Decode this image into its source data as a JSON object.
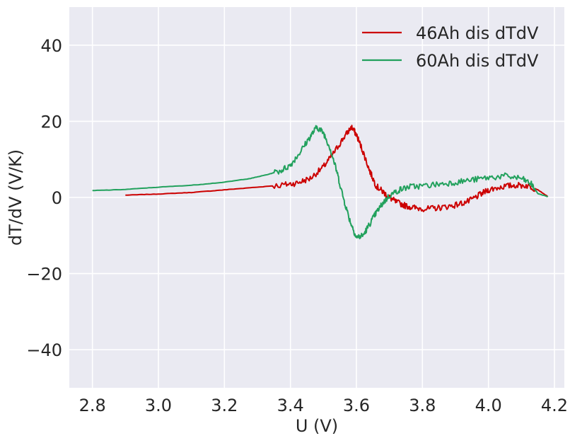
{
  "chart_data": {
    "type": "line",
    "title": "",
    "xlabel": "U (V)",
    "ylabel": "dT/dV (V/K)",
    "xlim": [
      2.73,
      4.23
    ],
    "ylim": [
      -50,
      50
    ],
    "xticks": [
      "2.8",
      "3.0",
      "3.2",
      "3.4",
      "3.6",
      "3.8",
      "4.0",
      "4.2"
    ],
    "yticks": [
      "40",
      "20",
      "0",
      "−20",
      "−40"
    ],
    "xtick_values": [
      2.8,
      3.0,
      3.2,
      3.4,
      3.6,
      3.8,
      4.0,
      4.2
    ],
    "ytick_values": [
      40,
      20,
      0,
      -20,
      -40
    ],
    "grid": true,
    "background": "#eaeaf2",
    "legend": {
      "placement": "top-right"
    },
    "series": [
      {
        "name": "46Ah dis dTdV",
        "color": "#cc0000",
        "points": [
          [
            2.9,
            0.6
          ],
          [
            3.0,
            0.9
          ],
          [
            3.1,
            1.3
          ],
          [
            3.2,
            2.0
          ],
          [
            3.3,
            2.7
          ],
          [
            3.38,
            3.3
          ],
          [
            3.42,
            3.8
          ],
          [
            3.46,
            5.0
          ],
          [
            3.5,
            8.0
          ],
          [
            3.53,
            11.5
          ],
          [
            3.56,
            15.5
          ],
          [
            3.585,
            18.5
          ],
          [
            3.6,
            16.5
          ],
          [
            3.62,
            12.0
          ],
          [
            3.64,
            7.0
          ],
          [
            3.66,
            3.0
          ],
          [
            3.68,
            1.5
          ],
          [
            3.7,
            0.0
          ],
          [
            3.72,
            -1.2
          ],
          [
            3.75,
            -2.2
          ],
          [
            3.78,
            -2.8
          ],
          [
            3.82,
            -3.0
          ],
          [
            3.86,
            -2.6
          ],
          [
            3.9,
            -2.0
          ],
          [
            3.94,
            -1.0
          ],
          [
            3.97,
            0.5
          ],
          [
            4.0,
            2.0
          ],
          [
            4.04,
            2.8
          ],
          [
            4.08,
            3.2
          ],
          [
            4.12,
            3.1
          ],
          [
            4.15,
            2.0
          ],
          [
            4.18,
            0.2
          ]
        ]
      },
      {
        "name": "60Ah dis dTdV",
        "color": "#22a15d",
        "points": [
          [
            2.8,
            1.8
          ],
          [
            2.9,
            2.1
          ],
          [
            3.0,
            2.7
          ],
          [
            3.1,
            3.2
          ],
          [
            3.2,
            4.0
          ],
          [
            3.28,
            5.0
          ],
          [
            3.33,
            6.0
          ],
          [
            3.37,
            7.0
          ],
          [
            3.4,
            8.5
          ],
          [
            3.43,
            12.0
          ],
          [
            3.46,
            16.0
          ],
          [
            3.48,
            18.5
          ],
          [
            3.5,
            17.0
          ],
          [
            3.52,
            13.0
          ],
          [
            3.54,
            7.0
          ],
          [
            3.56,
            0.0
          ],
          [
            3.58,
            -6.0
          ],
          [
            3.6,
            -10.5
          ],
          [
            3.62,
            -10.0
          ],
          [
            3.64,
            -7.0
          ],
          [
            3.66,
            -4.0
          ],
          [
            3.68,
            -1.5
          ],
          [
            3.7,
            0.5
          ],
          [
            3.73,
            2.0
          ],
          [
            3.76,
            2.8
          ],
          [
            3.8,
            3.0
          ],
          [
            3.85,
            3.5
          ],
          [
            3.9,
            4.0
          ],
          [
            3.95,
            4.6
          ],
          [
            4.0,
            5.2
          ],
          [
            4.05,
            5.6
          ],
          [
            4.1,
            5.0
          ],
          [
            4.13,
            3.5
          ],
          [
            4.15,
            1.0
          ],
          [
            4.18,
            0.2
          ]
        ]
      }
    ]
  }
}
